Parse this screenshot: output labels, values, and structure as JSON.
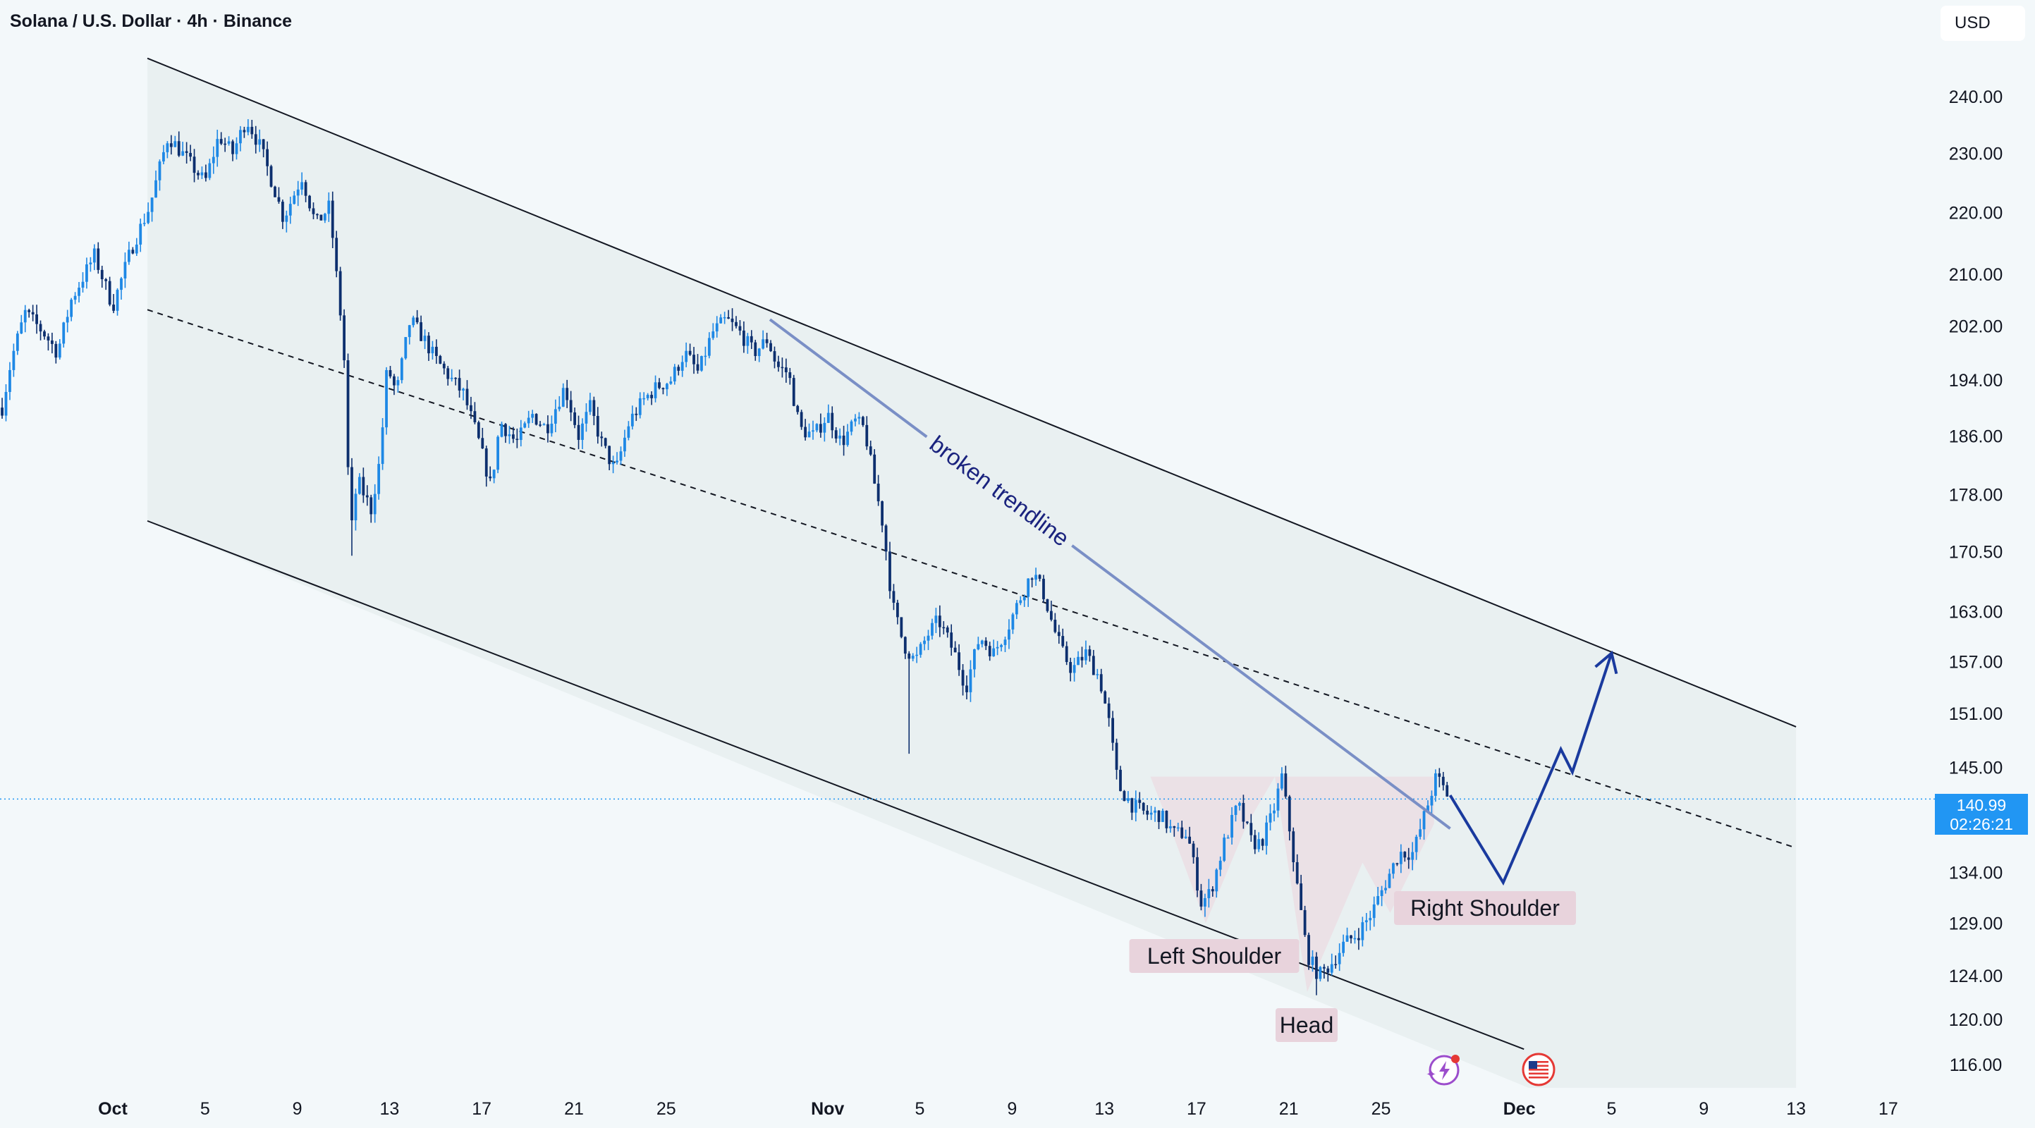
{
  "header": {
    "title": "Solana / U.S. Dollar · 4h · Binance",
    "currency_button": "USD"
  },
  "price_tag": {
    "price": "140.99",
    "countdown": "02:26:21",
    "color": "#2196f3"
  },
  "annotations": {
    "broken_trendline": "broken trendline",
    "left_shoulder": "Left Shoulder",
    "head": "Head",
    "right_shoulder": "Right Shoulder"
  },
  "icons": [
    "lightning-event-icon",
    "us-flag-icon"
  ],
  "colors": {
    "candles": "#0d47a1",
    "channel_fill": "#e6eeee",
    "pattern_fill": "#ebdde4",
    "projection": "#1a3a9e",
    "trendline": "#7a8fc6"
  },
  "chart_data": {
    "type": "candlestick",
    "symbol": "Solana / U.S. Dollar",
    "interval": "4h",
    "exchange": "Binance",
    "y_ticks": [
      116.0,
      120.0,
      124.0,
      129.0,
      134.0,
      140.99,
      145.0,
      151.0,
      157.0,
      163.0,
      170.5,
      178.0,
      186.0,
      194.0,
      202.0,
      210.0,
      220.0,
      230.0,
      240.0
    ],
    "y_scale": "log",
    "ylim": [
      113.0,
      246.0
    ],
    "x_ticks": [
      {
        "label": "Oct",
        "day": 1,
        "bold": true
      },
      {
        "label": "5",
        "day": 5
      },
      {
        "label": "9",
        "day": 9
      },
      {
        "label": "13",
        "day": 13
      },
      {
        "label": "17",
        "day": 17
      },
      {
        "label": "21",
        "day": 21
      },
      {
        "label": "25",
        "day": 25
      },
      {
        "label": "Nov",
        "day": 32,
        "bold": true
      },
      {
        "label": "5",
        "day": 36
      },
      {
        "label": "9",
        "day": 40
      },
      {
        "label": "13",
        "day": 44
      },
      {
        "label": "17",
        "day": 48
      },
      {
        "label": "21",
        "day": 52
      },
      {
        "label": "25",
        "day": 56
      },
      {
        "label": "Dec",
        "day": 62,
        "bold": true
      },
      {
        "label": "5",
        "day": 66
      },
      {
        "label": "9",
        "day": 70
      },
      {
        "label": "13",
        "day": 74
      },
      {
        "label": "17",
        "day": 78
      }
    ],
    "path_points": [
      [
        -3.8,
        190
      ],
      [
        -3.4,
        197
      ],
      [
        -2.8,
        204
      ],
      [
        -2.0,
        201
      ],
      [
        -1.4,
        198
      ],
      [
        -0.8,
        206
      ],
      [
        0.2,
        213
      ],
      [
        1.0,
        205
      ],
      [
        1.8,
        214
      ],
      [
        2.6,
        221
      ],
      [
        3.4,
        233
      ],
      [
        4.2,
        229
      ],
      [
        5.0,
        225
      ],
      [
        5.6,
        233
      ],
      [
        6.2,
        230
      ],
      [
        6.8,
        236
      ],
      [
        7.4,
        231
      ],
      [
        8.0,
        224
      ],
      [
        8.4,
        219
      ],
      [
        9.2,
        226
      ],
      [
        9.8,
        218
      ],
      [
        10.4,
        221
      ],
      [
        10.8,
        206
      ],
      [
        11.0,
        200
      ],
      [
        11.3,
        172
      ],
      [
        11.6,
        180
      ],
      [
        12.2,
        176
      ],
      [
        12.6,
        183
      ],
      [
        12.9,
        196
      ],
      [
        13.3,
        192
      ],
      [
        13.9,
        203
      ],
      [
        14.5,
        200
      ],
      [
        15.0,
        197
      ],
      [
        15.7,
        194
      ],
      [
        16.2,
        192
      ],
      [
        16.8,
        186
      ],
      [
        17.4,
        179
      ],
      [
        17.8,
        188
      ],
      [
        18.5,
        185
      ],
      [
        19.2,
        189
      ],
      [
        19.8,
        187
      ],
      [
        20.6,
        193
      ],
      [
        21.2,
        186
      ],
      [
        21.7,
        190
      ],
      [
        22.2,
        185
      ],
      [
        22.8,
        181
      ],
      [
        23.4,
        188
      ],
      [
        24.0,
        191
      ],
      [
        24.6,
        193
      ],
      [
        25.2,
        194
      ],
      [
        25.8,
        198
      ],
      [
        26.4,
        195
      ],
      [
        27.0,
        201
      ],
      [
        27.6,
        203
      ],
      [
        28.2,
        201
      ],
      [
        28.8,
        198
      ],
      [
        29.4,
        200
      ],
      [
        29.8,
        196
      ],
      [
        30.3,
        195
      ],
      [
        30.8,
        187
      ],
      [
        31.4,
        186
      ],
      [
        32.0,
        189
      ],
      [
        32.6,
        185
      ],
      [
        33.2,
        188
      ],
      [
        33.6,
        187
      ],
      [
        34.0,
        180
      ],
      [
        34.4,
        174
      ],
      [
        34.8,
        164
      ],
      [
        35.3,
        159
      ],
      [
        35.8,
        157
      ],
      [
        36.3,
        160
      ],
      [
        36.8,
        162
      ],
      [
        37.5,
        158
      ],
      [
        38.0,
        154
      ],
      [
        38.6,
        160
      ],
      [
        39.2,
        158
      ],
      [
        39.8,
        161
      ],
      [
        40.4,
        165
      ],
      [
        40.9,
        168
      ],
      [
        41.4,
        165
      ],
      [
        41.8,
        161
      ],
      [
        42.2,
        158
      ],
      [
        42.6,
        156
      ],
      [
        43.2,
        158
      ],
      [
        43.8,
        155
      ],
      [
        44.2,
        150
      ],
      [
        44.6,
        143
      ],
      [
        45.2,
        141
      ],
      [
        45.8,
        140
      ],
      [
        46.4,
        140
      ],
      [
        47.0,
        138
      ],
      [
        47.6,
        138
      ],
      [
        48.2,
        131
      ],
      [
        48.6,
        132
      ],
      [
        49.2,
        137
      ],
      [
        49.8,
        141
      ],
      [
        50.4,
        137
      ],
      [
        50.8,
        137
      ],
      [
        51.3,
        140
      ],
      [
        51.7,
        144
      ],
      [
        52.0,
        139
      ],
      [
        52.4,
        132
      ],
      [
        52.8,
        126
      ],
      [
        53.3,
        124
      ],
      [
        53.8,
        125
      ],
      [
        54.4,
        127
      ],
      [
        55.0,
        128
      ],
      [
        55.6,
        130
      ],
      [
        56.2,
        133
      ],
      [
        56.8,
        136
      ],
      [
        57.4,
        136
      ],
      [
        57.9,
        140
      ],
      [
        58.4,
        144
      ],
      [
        58.9,
        142
      ]
    ],
    "channel": {
      "upper": [
        [
          2.5,
          247.0
        ],
        [
          74.0,
          149.5
        ]
      ],
      "lower": [
        [
          2.5,
          174.5
        ],
        [
          74.0,
          108.5
        ]
      ],
      "midline": [
        [
          2.5,
          204.5
        ],
        [
          74.0,
          136.5
        ]
      ]
    },
    "broken_trendline": [
      [
        29.5,
        203.0
      ],
      [
        59.0,
        138.5
      ]
    ],
    "projection_path": [
      [
        59.0,
        142.0
      ],
      [
        61.3,
        133.0
      ],
      [
        63.8,
        147.0
      ],
      [
        64.3,
        144.5
      ],
      [
        66.0,
        158.0
      ]
    ],
    "inverse_head_and_shoulders": {
      "neckline": 144.0,
      "left_shoulder_low": 129.0,
      "head_low": 122.5,
      "right_shoulder_low": 130.0
    },
    "current_price": 140.99,
    "price_line_y_value": 141.6,
    "grid": false,
    "legend": "none"
  }
}
